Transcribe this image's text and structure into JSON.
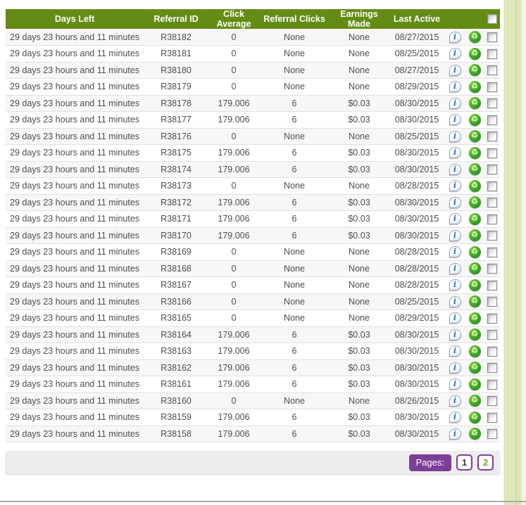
{
  "colors": {
    "header_bg": "#648c14",
    "header_text": "#ffffff",
    "row_alt_bg": "#f7f7f7",
    "row_border": "#e0e0e0",
    "cell_text": "#4d4d4d",
    "pagination_bg": "#ededed",
    "accent_purple": "#7d3e98",
    "page_link_green": "#76a42c",
    "info_icon_blue": "#2b6cd4",
    "recycle_icon_green": "#3aa327",
    "background_strip_green": "#d9e5ae"
  },
  "table": {
    "columns": [
      "Days Left",
      "Referral ID",
      "Click Average",
      "Referral Clicks",
      "Earnings Made",
      "Last Active"
    ],
    "rows": [
      {
        "days_left": "29 days 23 hours and 11 minutes",
        "referral_id": "R38182",
        "click_average": "0",
        "referral_clicks": "None",
        "earnings_made": "None",
        "last_active": "08/27/2015"
      },
      {
        "days_left": "29 days 23 hours and 11 minutes",
        "referral_id": "R38181",
        "click_average": "0",
        "referral_clicks": "None",
        "earnings_made": "None",
        "last_active": "08/25/2015"
      },
      {
        "days_left": "29 days 23 hours and 11 minutes",
        "referral_id": "R38180",
        "click_average": "0",
        "referral_clicks": "None",
        "earnings_made": "None",
        "last_active": "08/27/2015"
      },
      {
        "days_left": "29 days 23 hours and 11 minutes",
        "referral_id": "R38179",
        "click_average": "0",
        "referral_clicks": "None",
        "earnings_made": "None",
        "last_active": "08/29/2015"
      },
      {
        "days_left": "29 days 23 hours and 11 minutes",
        "referral_id": "R38178",
        "click_average": "179.006",
        "referral_clicks": "6",
        "earnings_made": "$0.03",
        "last_active": "08/30/2015"
      },
      {
        "days_left": "29 days 23 hours and 11 minutes",
        "referral_id": "R38177",
        "click_average": "179.006",
        "referral_clicks": "6",
        "earnings_made": "$0.03",
        "last_active": "08/30/2015"
      },
      {
        "days_left": "29 days 23 hours and 11 minutes",
        "referral_id": "R38176",
        "click_average": "0",
        "referral_clicks": "None",
        "earnings_made": "None",
        "last_active": "08/25/2015"
      },
      {
        "days_left": "29 days 23 hours and 11 minutes",
        "referral_id": "R38175",
        "click_average": "179.006",
        "referral_clicks": "6",
        "earnings_made": "$0.03",
        "last_active": "08/30/2015"
      },
      {
        "days_left": "29 days 23 hours and 11 minutes",
        "referral_id": "R38174",
        "click_average": "179.006",
        "referral_clicks": "6",
        "earnings_made": "$0.03",
        "last_active": "08/30/2015"
      },
      {
        "days_left": "29 days 23 hours and 11 minutes",
        "referral_id": "R38173",
        "click_average": "0",
        "referral_clicks": "None",
        "earnings_made": "None",
        "last_active": "08/28/2015"
      },
      {
        "days_left": "29 days 23 hours and 11 minutes",
        "referral_id": "R38172",
        "click_average": "179.006",
        "referral_clicks": "6",
        "earnings_made": "$0.03",
        "last_active": "08/30/2015"
      },
      {
        "days_left": "29 days 23 hours and 11 minutes",
        "referral_id": "R38171",
        "click_average": "179.006",
        "referral_clicks": "6",
        "earnings_made": "$0.03",
        "last_active": "08/30/2015"
      },
      {
        "days_left": "29 days 23 hours and 11 minutes",
        "referral_id": "R38170",
        "click_average": "179.006",
        "referral_clicks": "6",
        "earnings_made": "$0.03",
        "last_active": "08/30/2015"
      },
      {
        "days_left": "29 days 23 hours and 11 minutes",
        "referral_id": "R38169",
        "click_average": "0",
        "referral_clicks": "None",
        "earnings_made": "None",
        "last_active": "08/28/2015"
      },
      {
        "days_left": "29 days 23 hours and 11 minutes",
        "referral_id": "R38168",
        "click_average": "0",
        "referral_clicks": "None",
        "earnings_made": "None",
        "last_active": "08/28/2015"
      },
      {
        "days_left": "29 days 23 hours and 11 minutes",
        "referral_id": "R38167",
        "click_average": "0",
        "referral_clicks": "None",
        "earnings_made": "None",
        "last_active": "08/28/2015"
      },
      {
        "days_left": "29 days 23 hours and 11 minutes",
        "referral_id": "R38166",
        "click_average": "0",
        "referral_clicks": "None",
        "earnings_made": "None",
        "last_active": "08/25/2015"
      },
      {
        "days_left": "29 days 23 hours and 11 minutes",
        "referral_id": "R38165",
        "click_average": "0",
        "referral_clicks": "None",
        "earnings_made": "None",
        "last_active": "08/29/2015"
      },
      {
        "days_left": "29 days 23 hours and 11 minutes",
        "referral_id": "R38164",
        "click_average": "179.006",
        "referral_clicks": "6",
        "earnings_made": "$0.03",
        "last_active": "08/30/2015"
      },
      {
        "days_left": "29 days 23 hours and 11 minutes",
        "referral_id": "R38163",
        "click_average": "179.006",
        "referral_clicks": "6",
        "earnings_made": "$0.03",
        "last_active": "08/30/2015"
      },
      {
        "days_left": "29 days 23 hours and 11 minutes",
        "referral_id": "R38162",
        "click_average": "179.006",
        "referral_clicks": "6",
        "earnings_made": "$0.03",
        "last_active": "08/30/2015"
      },
      {
        "days_left": "29 days 23 hours and 11 minutes",
        "referral_id": "R38161",
        "click_average": "179.006",
        "referral_clicks": "6",
        "earnings_made": "$0.03",
        "last_active": "08/30/2015"
      },
      {
        "days_left": "29 days 23 hours and 11 minutes",
        "referral_id": "R38160",
        "click_average": "0",
        "referral_clicks": "None",
        "earnings_made": "None",
        "last_active": "08/26/2015"
      },
      {
        "days_left": "29 days 23 hours and 11 minutes",
        "referral_id": "R38159",
        "click_average": "179.006",
        "referral_clicks": "6",
        "earnings_made": "$0.03",
        "last_active": "08/30/2015"
      },
      {
        "days_left": "29 days 23 hours and 11 minutes",
        "referral_id": "R38158",
        "click_average": "179.006",
        "referral_clicks": "6",
        "earnings_made": "$0.03",
        "last_active": "08/30/2015"
      }
    ]
  },
  "pagination": {
    "label": "Pages:",
    "pages": [
      "1",
      "2"
    ],
    "current_page": "1"
  }
}
